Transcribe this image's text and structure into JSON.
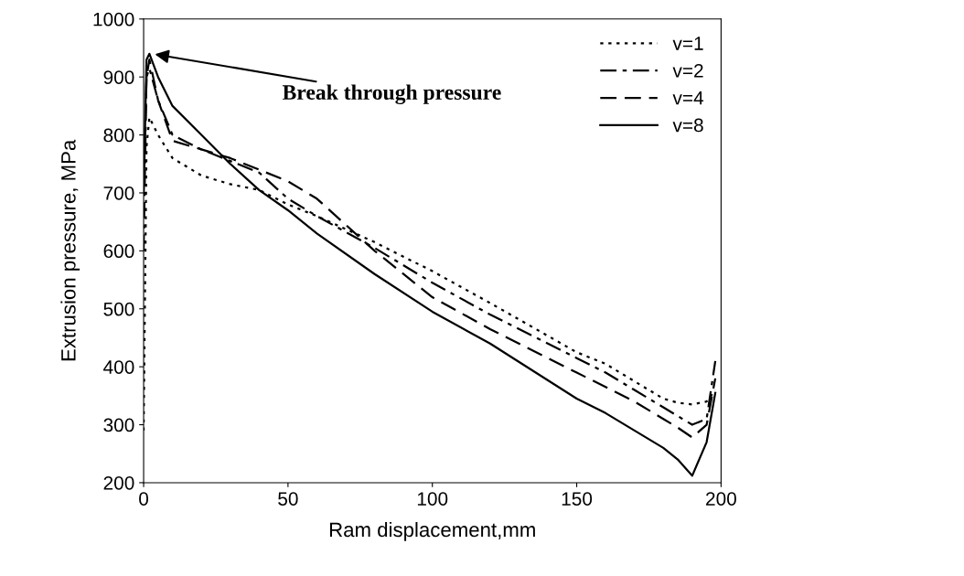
{
  "chart_data": {
    "type": "line",
    "xlabel": "Ram displacement,mm",
    "ylabel": "Extrusion pressure, MPa",
    "xlim": [
      0,
      200
    ],
    "ylim": [
      200,
      1000
    ],
    "xticks": [
      0,
      50,
      100,
      150,
      200
    ],
    "yticks": [
      200,
      300,
      400,
      500,
      600,
      700,
      800,
      900,
      1000
    ],
    "legend": "top right",
    "grid": false,
    "marker": "none",
    "x": [
      0,
      1,
      2,
      5,
      10,
      20,
      30,
      40,
      50,
      60,
      80,
      100,
      120,
      150,
      160,
      170,
      180,
      185,
      190,
      195,
      198
    ],
    "series": [
      {
        "name": "v=1",
        "color": "#000000",
        "line_style": "dotted",
        "values": [
          290,
          780,
          830,
          800,
          760,
          730,
          715,
          705,
          680,
          660,
          615,
          565,
          510,
          425,
          405,
          375,
          345,
          338,
          335,
          340,
          360
        ]
      },
      {
        "name": "v=2",
        "color": "#000000",
        "line_style": "dashdot",
        "values": [
          600,
          900,
          915,
          860,
          800,
          775,
          755,
          735,
          690,
          660,
          605,
          545,
          490,
          415,
          390,
          360,
          330,
          315,
          300,
          310,
          410
        ]
      },
      {
        "name": "v=4",
        "color": "#000000",
        "line_style": "dashed",
        "values": [
          700,
          900,
          930,
          860,
          790,
          775,
          760,
          740,
          720,
          690,
          600,
          520,
          465,
          390,
          365,
          340,
          310,
          295,
          278,
          300,
          380
        ]
      },
      {
        "name": "v=8",
        "color": "#000000",
        "line_style": "solid",
        "values": [
          700,
          930,
          940,
          900,
          850,
          800,
          750,
          705,
          670,
          630,
          560,
          495,
          440,
          345,
          320,
          290,
          260,
          240,
          212,
          270,
          355
        ]
      }
    ],
    "annotations": [
      {
        "text": "Break through pressure",
        "x": 3,
        "y": 940
      }
    ]
  }
}
